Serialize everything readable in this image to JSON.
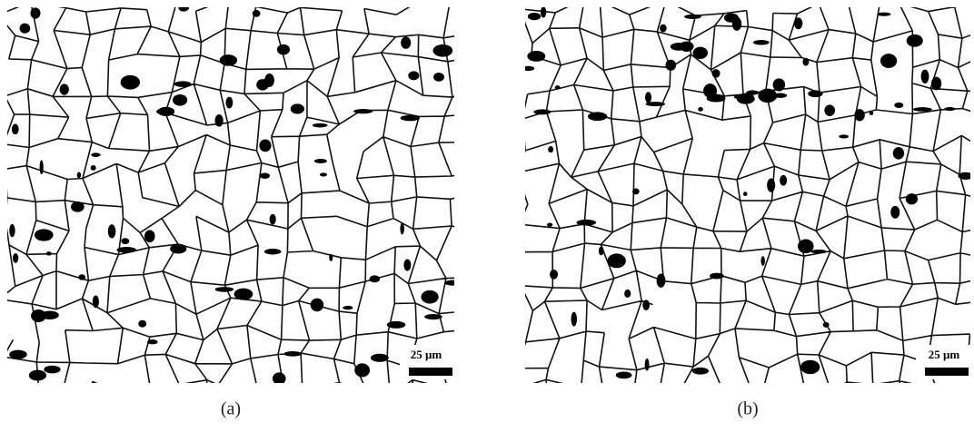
{
  "panels": [
    {
      "label": "(a)",
      "scale_bar": "25 μm"
    },
    {
      "label": "(b)",
      "scale_bar": "25 μm"
    }
  ]
}
